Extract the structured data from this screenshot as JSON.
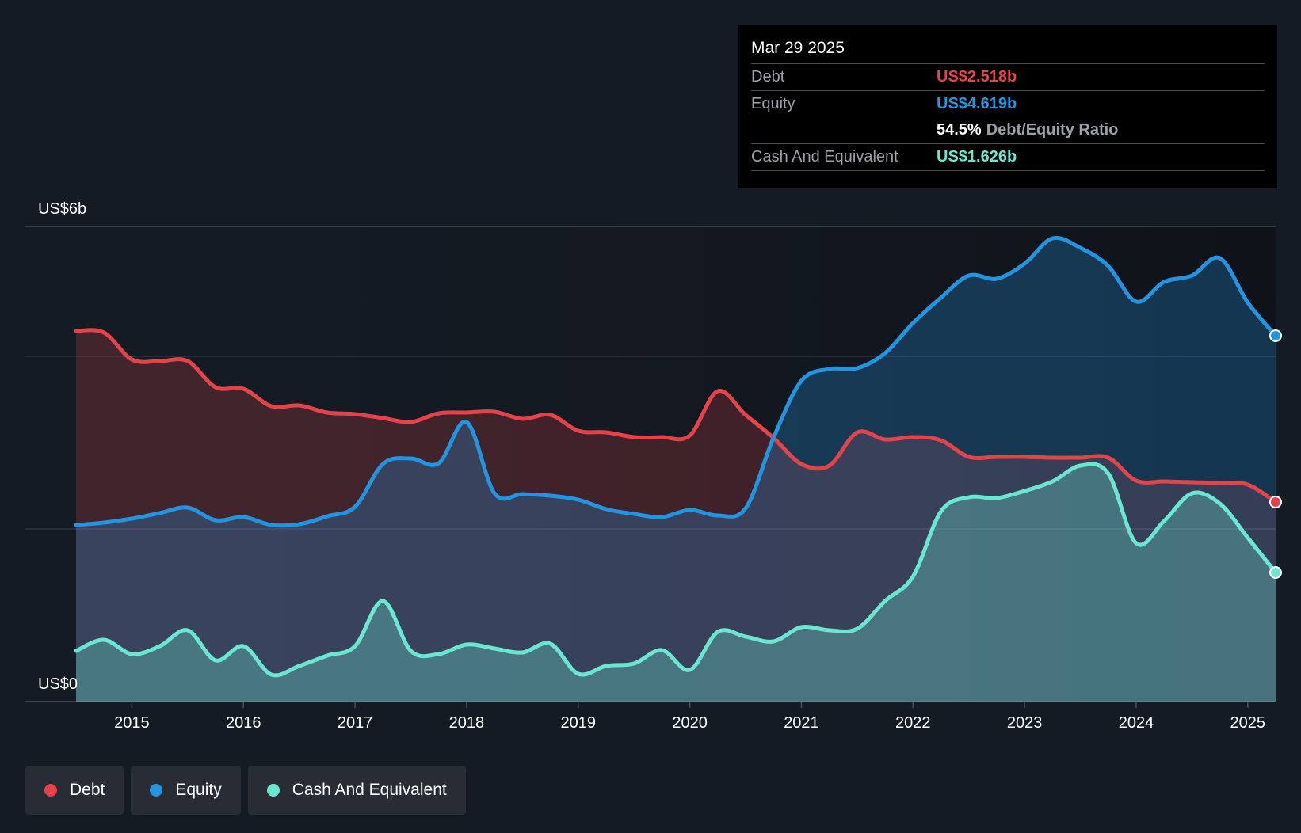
{
  "tooltip": {
    "date": "Mar 29 2025",
    "debt_label": "Debt",
    "debt_value": "US$2.518b",
    "equity_label": "Equity",
    "equity_value": "US$4.619b",
    "ratio_value": "54.5%",
    "ratio_label": "Debt/Equity Ratio",
    "cash_label": "Cash And Equivalent",
    "cash_value": "US$1.626b"
  },
  "legend": {
    "debt": "Debt",
    "equity": "Equity",
    "cash": "Cash And Equivalent"
  },
  "colors": {
    "debt": "#e5434a",
    "equity": "#2394df",
    "cash": "#6ae6d1",
    "background": "#151b24"
  },
  "chart_data": {
    "type": "area",
    "y_top_label": "US$6b",
    "y_bottom_label": "US$0",
    "ylim": [
      0,
      6
    ],
    "xlim": [
      2014.5,
      2025.25
    ],
    "x_ticks": [
      "2015",
      "2016",
      "2017",
      "2018",
      "2019",
      "2020",
      "2021",
      "2022",
      "2023",
      "2024",
      "2025"
    ],
    "series": [
      {
        "name": "Debt",
        "x": [
          2014.5,
          2014.75,
          2015.0,
          2015.25,
          2015.5,
          2015.75,
          2016.0,
          2016.25,
          2016.5,
          2016.75,
          2017.0,
          2017.25,
          2017.5,
          2017.75,
          2018.0,
          2018.25,
          2018.5,
          2018.75,
          2019.0,
          2019.25,
          2019.5,
          2019.75,
          2020.0,
          2020.25,
          2020.5,
          2020.75,
          2021.0,
          2021.25,
          2021.5,
          2021.75,
          2022.0,
          2022.25,
          2022.5,
          2022.75,
          2023.0,
          2023.25,
          2023.5,
          2023.75,
          2024.0,
          2024.25,
          2024.5,
          2024.75,
          2025.0,
          2025.25
        ],
        "values": [
          4.68,
          4.66,
          4.32,
          4.3,
          4.3,
          3.97,
          3.95,
          3.73,
          3.74,
          3.65,
          3.63,
          3.58,
          3.53,
          3.64,
          3.65,
          3.66,
          3.57,
          3.62,
          3.42,
          3.4,
          3.34,
          3.34,
          3.36,
          3.92,
          3.62,
          3.33,
          3.0,
          2.98,
          3.4,
          3.31,
          3.34,
          3.3,
          3.09,
          3.09,
          3.09,
          3.08,
          3.08,
          3.08,
          2.79,
          2.78,
          2.77,
          2.76,
          2.74,
          2.52
        ]
      },
      {
        "name": "Equity",
        "x": [
          2014.5,
          2014.75,
          2015.0,
          2015.25,
          2015.5,
          2015.75,
          2016.0,
          2016.25,
          2016.5,
          2016.75,
          2017.0,
          2017.25,
          2017.5,
          2017.75,
          2018.0,
          2018.25,
          2018.5,
          2018.75,
          2019.0,
          2019.25,
          2019.5,
          2019.75,
          2020.0,
          2020.25,
          2020.5,
          2020.75,
          2021.0,
          2021.25,
          2021.5,
          2021.75,
          2022.0,
          2022.25,
          2022.5,
          2022.75,
          2023.0,
          2023.25,
          2023.5,
          2023.75,
          2024.0,
          2024.25,
          2024.5,
          2024.75,
          2025.0,
          2025.25
        ],
        "values": [
          2.23,
          2.26,
          2.31,
          2.38,
          2.45,
          2.29,
          2.33,
          2.23,
          2.24,
          2.34,
          2.46,
          3.0,
          3.07,
          3.01,
          3.53,
          2.63,
          2.62,
          2.6,
          2.55,
          2.43,
          2.37,
          2.33,
          2.42,
          2.35,
          2.44,
          3.33,
          4.05,
          4.2,
          4.21,
          4.4,
          4.78,
          5.1,
          5.38,
          5.34,
          5.53,
          5.85,
          5.73,
          5.5,
          5.05,
          5.3,
          5.38,
          5.6,
          5.04,
          4.62
        ]
      },
      {
        "name": "Cash And Equivalent",
        "x": [
          2014.5,
          2014.75,
          2015.0,
          2015.25,
          2015.5,
          2015.75,
          2016.0,
          2016.25,
          2016.5,
          2016.75,
          2017.0,
          2017.25,
          2017.5,
          2017.75,
          2018.0,
          2018.25,
          2018.5,
          2018.75,
          2019.0,
          2019.25,
          2019.5,
          2019.75,
          2020.0,
          2020.25,
          2020.5,
          2020.75,
          2021.0,
          2021.25,
          2021.5,
          2021.75,
          2022.0,
          2022.25,
          2022.5,
          2022.75,
          2023.0,
          2023.25,
          2023.5,
          2023.75,
          2024.0,
          2024.25,
          2024.5,
          2024.75,
          2025.0,
          2025.25
        ],
        "values": [
          0.64,
          0.78,
          0.6,
          0.7,
          0.9,
          0.52,
          0.7,
          0.34,
          0.45,
          0.58,
          0.7,
          1.27,
          0.64,
          0.6,
          0.72,
          0.67,
          0.62,
          0.73,
          0.35,
          0.45,
          0.48,
          0.65,
          0.4,
          0.88,
          0.82,
          0.76,
          0.94,
          0.9,
          0.92,
          1.27,
          1.58,
          2.4,
          2.58,
          2.57,
          2.66,
          2.78,
          2.98,
          2.88,
          2.0,
          2.28,
          2.63,
          2.5,
          2.07,
          1.63
        ]
      }
    ]
  }
}
